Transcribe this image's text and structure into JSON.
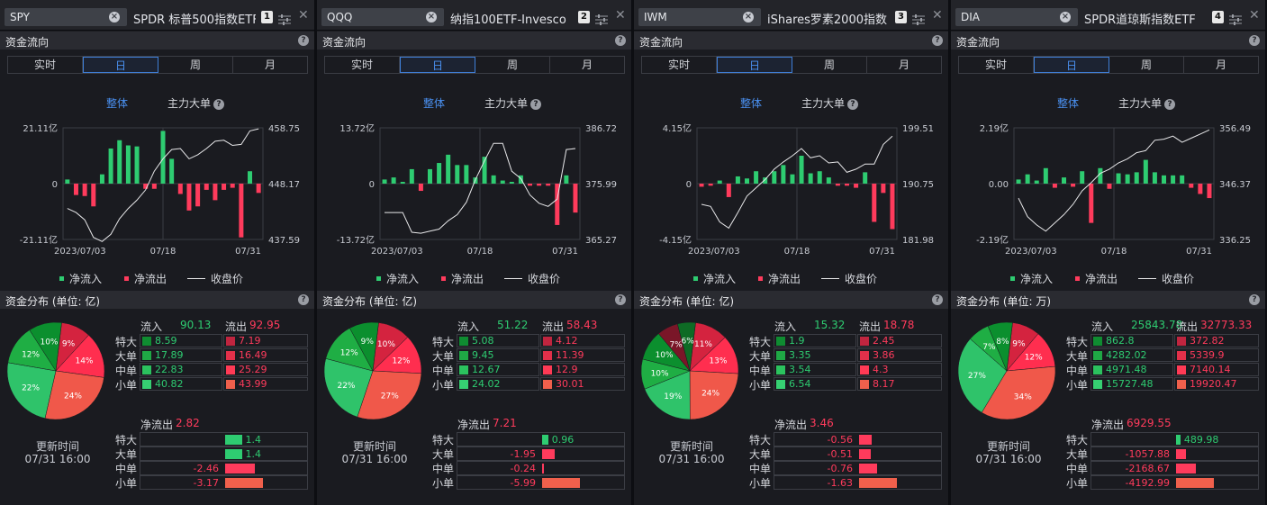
{
  "colors": {
    "up": "#2ecc71",
    "down": "#ff3b5c",
    "accent": "#4a90f0"
  },
  "common": {
    "section_flow": "资金流向",
    "tabs": [
      "实时",
      "日",
      "周",
      "月"
    ],
    "active_tab": "日",
    "sub_overall": "整体",
    "sub_main": "主力大单",
    "legend_in": "净流入",
    "legend_out": "净流出",
    "legend_close": "收盘价",
    "inflow_label": "流入",
    "outflow_label": "流出",
    "net_out_label": "净流出",
    "row_labels": [
      "特大",
      "大单",
      "中单",
      "小单"
    ],
    "update_label": "更新时间",
    "update_time": "07/31 16:00",
    "x_ticks": [
      "2023/07/03",
      "07/18",
      "07/31"
    ]
  },
  "panels": [
    {
      "ticker": "SPY",
      "name": "SPDR 标普500指数ETF",
      "num": "1",
      "dist_header": "资金分布 (单位: 亿)",
      "y_left": [
        "21.11亿",
        "0",
        "-21.11亿"
      ],
      "y_right": [
        "458.75",
        "448.17",
        "437.59"
      ],
      "inflow": "90.13",
      "outflow": "92.95",
      "in_vals": [
        "8.59",
        "17.89",
        "22.83",
        "40.82"
      ],
      "out_vals": [
        "7.19",
        "16.49",
        "25.29",
        "43.99"
      ],
      "net_out": "2.82",
      "net_vals": [
        "1.4",
        "1.4",
        "-2.46",
        "-3.17"
      ],
      "pie_pct": [
        "10%",
        "12%",
        "22%",
        "24%",
        "14%",
        "9%"
      ],
      "chart_data": {
        "type": "bar",
        "flow_bars": [
          0.2,
          -0.55,
          -0.6,
          -1.1,
          0.45,
          1.7,
          2.1,
          1.85,
          1.8,
          -0.25,
          -0.25,
          2.55,
          1.2,
          -0.5,
          -1.3,
          -1.1,
          -0.3,
          -0.8,
          -0.3,
          -0.2,
          -2.6,
          0.6,
          -0.45
        ],
        "close": [
          -1.2,
          -1.4,
          -1.75,
          -2.6,
          -2.8,
          -2.45,
          -1.7,
          -1.2,
          -0.8,
          -0.3,
          0.6,
          1.2,
          1.65,
          1.7,
          1.2,
          1.4,
          1.7,
          2.05,
          2.1,
          1.85,
          1.9,
          2.55,
          2.65
        ]
      }
    },
    {
      "ticker": "QQQ",
      "name": "纳指100ETF-Invesco",
      "num": "2",
      "dist_header": "资金分布 (单位: 亿)",
      "y_left": [
        "13.72亿",
        "0",
        "-13.72亿"
      ],
      "y_right": [
        "386.72",
        "375.99",
        "365.27"
      ],
      "inflow": "51.22",
      "outflow": "58.43",
      "in_vals": [
        "5.08",
        "9.45",
        "12.67",
        "24.02"
      ],
      "out_vals": [
        "4.12",
        "11.39",
        "12.9",
        "30.01"
      ],
      "net_out": "7.21",
      "net_vals": [
        "0.96",
        "-1.95",
        "-0.24",
        "-5.99"
      ],
      "pie_pct": [
        "9%",
        "12%",
        "22%",
        "27%",
        "12%",
        "10%"
      ],
      "chart_data": {
        "type": "bar",
        "flow_bars": [
          0.2,
          0.3,
          0.05,
          0.7,
          -0.35,
          0.7,
          1.0,
          1.4,
          0.9,
          0.9,
          0.3,
          1.3,
          0.4,
          0.15,
          0.05,
          0.4,
          -0.1,
          -0.1,
          -0.1,
          -2.0,
          0.4,
          -1.4
        ],
        "close": [
          -1.4,
          -1.4,
          -1.4,
          -2.35,
          -2.4,
          -2.3,
          -2.2,
          -1.8,
          -1.5,
          -0.9,
          0.2,
          1.1,
          1.95,
          1.95,
          0.6,
          0.25,
          -0.55,
          -0.95,
          -1.1,
          -0.75,
          1.65,
          1.7
        ]
      }
    },
    {
      "ticker": "IWM",
      "name": "iShares罗素2000指数",
      "num": "3",
      "dist_header": "资金分布 (单位: 亿)",
      "y_left": [
        "4.15亿",
        "0",
        "-4.15亿"
      ],
      "y_right": [
        "199.51",
        "190.75",
        "181.98"
      ],
      "inflow": "15.32",
      "outflow": "18.78",
      "in_vals": [
        "1.9",
        "3.35",
        "3.54",
        "6.54"
      ],
      "out_vals": [
        "2.45",
        "3.86",
        "4.3",
        "8.17"
      ],
      "net_out": "3.46",
      "net_vals": [
        "-0.56",
        "-0.51",
        "-0.76",
        "-1.63"
      ],
      "pie_pct": [
        "10%",
        "10%",
        "19%",
        "24%",
        "13%",
        "11%",
        "7%",
        "6%"
      ],
      "chart_data": {
        "type": "bar",
        "flow_bars": [
          -0.15,
          -0.1,
          0.15,
          -0.65,
          0.35,
          0.25,
          0.6,
          0.3,
          0.6,
          0.9,
          0.45,
          1.35,
          0.5,
          0.6,
          0.3,
          -0.1,
          -0.1,
          -0.2,
          0.55,
          -1.85,
          -0.45,
          -2.2
        ],
        "close": [
          -1.0,
          -1.1,
          -1.85,
          -2.15,
          -1.4,
          -0.6,
          -0.2,
          0.2,
          0.7,
          1.05,
          1.35,
          1.7,
          1.25,
          1.35,
          1.0,
          1.05,
          0.55,
          0.7,
          0.95,
          0.95,
          1.9,
          2.3
        ]
      }
    },
    {
      "ticker": "DIA",
      "name": "SPDR道琼斯指数ETF",
      "num": "4",
      "dist_header": "资金分布 (单位: 万)",
      "y_left": [
        "2.19亿",
        "0.00",
        "-2.19亿"
      ],
      "y_right": [
        "356.49",
        "346.37",
        "336.25"
      ],
      "inflow": "25843.78",
      "outflow": "32773.33",
      "in_vals": [
        "862.8",
        "4282.02",
        "4971.48",
        "15727.48"
      ],
      "out_vals": [
        "372.82",
        "5339.9",
        "7140.14",
        "19920.47"
      ],
      "net_out": "6929.55",
      "net_vals": [
        "489.98",
        "-1057.88",
        "-2168.67",
        "-4192.99"
      ],
      "pie_pct": [
        "8%",
        "7%",
        "27%",
        "34%",
        "12%",
        "9%"
      ],
      "chart_data": {
        "type": "bar",
        "flow_bars": [
          0.2,
          0.45,
          0.15,
          0.75,
          -0.2,
          0.3,
          -0.15,
          0.6,
          -1.9,
          0.75,
          -0.25,
          0.5,
          0.45,
          0.55,
          1.15,
          0.55,
          0.4,
          0.4,
          0.4,
          -0.2,
          -0.5,
          -0.7
        ],
        "close": [
          -0.7,
          -1.6,
          -2.0,
          -2.3,
          -1.9,
          -1.5,
          -1.0,
          -0.35,
          0.05,
          0.5,
          0.7,
          1.0,
          1.2,
          1.5,
          1.6,
          2.1,
          2.15,
          2.3,
          2.0,
          2.2,
          2.4,
          2.6
        ]
      }
    }
  ]
}
